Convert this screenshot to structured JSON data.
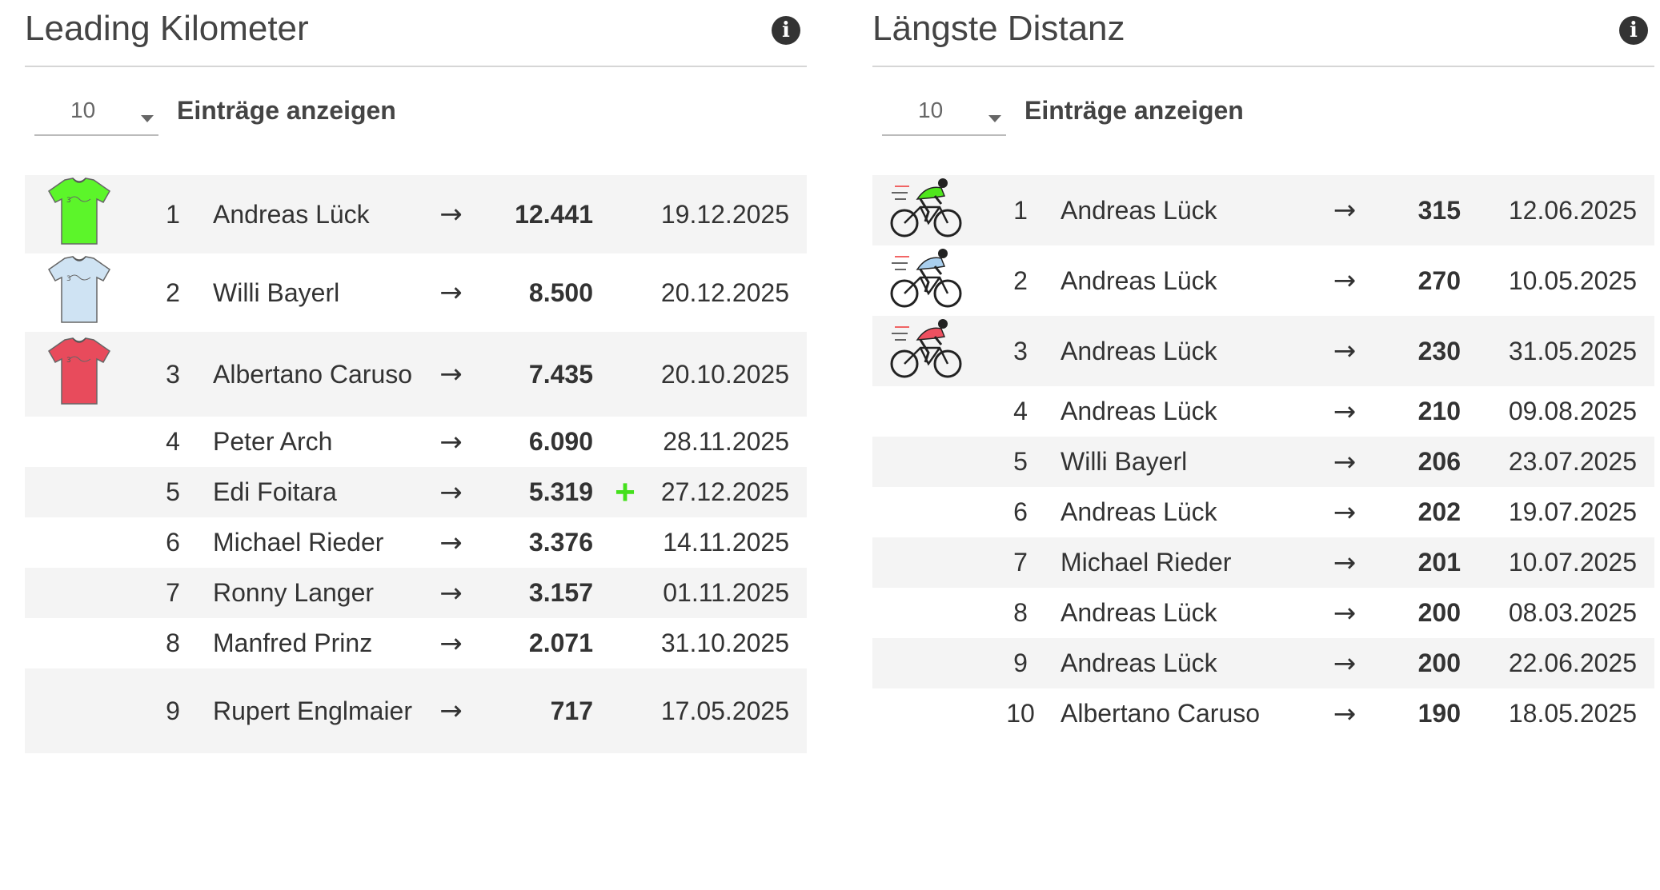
{
  "left_panel": {
    "title": "Leading Kilometer",
    "info_icon": "info-circle-icon",
    "length_value": "10",
    "length_label": "Einträge anzeigen",
    "rows": [
      {
        "rank": "1",
        "name": "Andreas Lück",
        "value": "12.441",
        "plus": "",
        "date": "19.12.2025",
        "shirt": "#5cf52a"
      },
      {
        "rank": "2",
        "name": "Willi Bayerl",
        "value": "8.500",
        "plus": "",
        "date": "20.12.2025",
        "shirt": "#cfe3f3"
      },
      {
        "rank": "3",
        "name": "Albertano Caruso",
        "value": "7.435",
        "plus": "",
        "date": "20.10.2025",
        "shirt": "#e84b5c"
      },
      {
        "rank": "4",
        "name": "Peter Arch",
        "value": "6.090",
        "plus": "",
        "date": "28.11.2025",
        "shirt": ""
      },
      {
        "rank": "5",
        "name": "Edi Foitara",
        "value": "5.319",
        "plus": "+",
        "date": "27.12.2025",
        "shirt": ""
      },
      {
        "rank": "6",
        "name": "Michael Rieder",
        "value": "3.376",
        "plus": "",
        "date": "14.11.2025",
        "shirt": ""
      },
      {
        "rank": "7",
        "name": "Ronny Langer",
        "value": "3.157",
        "plus": "",
        "date": "01.11.2025",
        "shirt": ""
      },
      {
        "rank": "8",
        "name": "Manfred Prinz",
        "value": "2.071",
        "plus": "",
        "date": "31.10.2025",
        "shirt": ""
      },
      {
        "rank": "9",
        "name": "Rupert Englmaier",
        "value": "717",
        "plus": "",
        "date": "17.05.2025",
        "shirt": ""
      }
    ]
  },
  "right_panel": {
    "title": "Längste Distanz",
    "info_icon": "info-circle-icon",
    "length_value": "10",
    "length_label": "Einträge anzeigen",
    "rows": [
      {
        "rank": "1",
        "name": "Andreas Lück",
        "value": "315",
        "date": "12.06.2025",
        "cyclist": "#4fe61c"
      },
      {
        "rank": "2",
        "name": "Andreas Lück",
        "value": "270",
        "date": "10.05.2025",
        "cyclist": "#a9cfee"
      },
      {
        "rank": "3",
        "name": "Andreas Lück",
        "value": "230",
        "date": "31.05.2025",
        "cyclist": "#ee5060"
      },
      {
        "rank": "4",
        "name": "Andreas Lück",
        "value": "210",
        "date": "09.08.2025",
        "cyclist": ""
      },
      {
        "rank": "5",
        "name": "Willi Bayerl",
        "value": "206",
        "date": "23.07.2025",
        "cyclist": ""
      },
      {
        "rank": "6",
        "name": "Andreas Lück",
        "value": "202",
        "date": "19.07.2025",
        "cyclist": ""
      },
      {
        "rank": "7",
        "name": "Michael Rieder",
        "value": "201",
        "date": "10.07.2025",
        "cyclist": ""
      },
      {
        "rank": "8",
        "name": "Andreas Lück",
        "value": "200",
        "date": "08.03.2025",
        "cyclist": ""
      },
      {
        "rank": "9",
        "name": "Andreas Lück",
        "value": "200",
        "date": "22.06.2025",
        "cyclist": ""
      },
      {
        "rank": "10",
        "name": "Albertano Caruso",
        "value": "190",
        "date": "18.05.2025",
        "cyclist": ""
      }
    ]
  },
  "arrow_icon": "arrow-right-icon",
  "arrow_glyph": "→",
  "info_glyph": "i"
}
